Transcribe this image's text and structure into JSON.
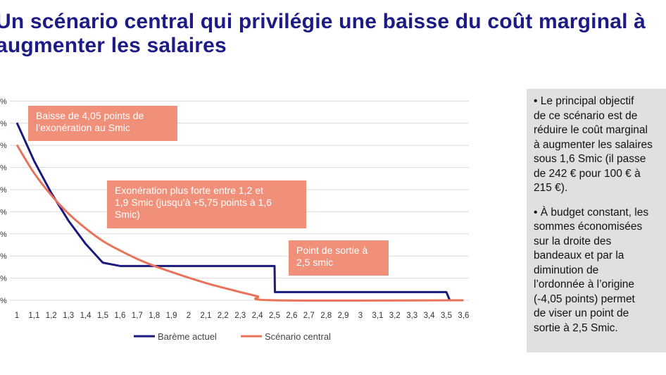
{
  "slide": {
    "title_line1": "Un scénario central qui privilégie une baisse du coût marginal à",
    "title_line2": "augmenter les salaires"
  },
  "sidebar": {
    "paragraphs": [
      "• Le principal objectif\nde ce scénario est de\nréduire le coût marginal\nà augmenter les salaires\nsous 1,6 Smic (il passe\nde 242 € pour 100 € à\n215 €).",
      "• À budget constant, les\nsommes économisées\nsur la droite des\nbandeaux et par la\ndiminution de\nl’ordonnée à l’origine\n(-4,05 points) permet\nde viser un point de\nsortie à 2,5 Smic."
    ]
  },
  "annotations": [
    "Baisse de 4,05 points de\nl’exonération au Smic",
    "Exonération plus forte entre 1,2 et\n1,9 Smic (jusqu’à +5,75 points à 1,6\nSmic)",
    "Point de sortie à\n2,5 smic"
  ],
  "colors": {
    "title": "#1d1b86",
    "bareme": "#1b1a7f",
    "scenario": "#e8735a",
    "callout": "#f0907a",
    "grid": "#d9d9d9",
    "sidebar_bg": "#e0e0e0"
  },
  "chart_data": {
    "type": "line",
    "x": [
      1,
      1.1,
      1.2,
      1.3,
      1.4,
      1.5,
      1.6,
      1.7,
      1.8,
      1.9,
      2,
      2.1,
      2.2,
      2.3,
      2.4,
      2.5,
      2.6,
      2.7,
      2.8,
      2.9,
      3,
      3.1,
      3.2,
      3.3,
      3.4,
      3.5,
      3.6
    ],
    "x_tick_labels": [
      "1",
      "1,1",
      "1,2",
      "1,3",
      "1,4",
      "1,5",
      "1,6",
      "1,7",
      "1,8",
      "1,9",
      "2",
      "2,1",
      "2,2",
      "2,3",
      "2,4",
      "2,5",
      "2,6",
      "2,7",
      "2,8",
      "2,9",
      "3",
      "3,1",
      "3,2",
      "3,3",
      "3,4",
      "3,5",
      "3,6"
    ],
    "y_tick_labels": [
      "%",
      "%",
      "%",
      "%",
      "%",
      "%",
      "%",
      "%",
      "%",
      "%"
    ],
    "ylim": [
      0,
      9
    ],
    "grid": true,
    "legend_position": "bottom",
    "series": [
      {
        "name": "Barème actuel",
        "points": [
          [
            1,
            8.02
          ],
          [
            1.1,
            6.3
          ],
          [
            1.2,
            4.85
          ],
          [
            1.3,
            3.6
          ],
          [
            1.4,
            2.55
          ],
          [
            1.5,
            1.7
          ],
          [
            1.6,
            1.55
          ],
          [
            2.5,
            1.55
          ],
          [
            2.502,
            0.37
          ],
          [
            3.5,
            0.37
          ],
          [
            3.52,
            0
          ]
        ]
      },
      {
        "name": "Scénario central",
        "points": [
          [
            1,
            7.02
          ],
          [
            1.1,
            5.75
          ],
          [
            1.2,
            4.75
          ],
          [
            1.3,
            3.92
          ],
          [
            1.4,
            3.25
          ],
          [
            1.5,
            2.68
          ],
          [
            1.6,
            2.25
          ],
          [
            1.7,
            1.87
          ],
          [
            1.8,
            1.55
          ],
          [
            1.9,
            1.28
          ],
          [
            2,
            1.02
          ],
          [
            2.1,
            0.78
          ],
          [
            2.2,
            0.57
          ],
          [
            2.3,
            0.37
          ],
          [
            2.4,
            0.18
          ],
          [
            2.5,
            0
          ],
          [
            3.6,
            0
          ]
        ]
      }
    ]
  }
}
